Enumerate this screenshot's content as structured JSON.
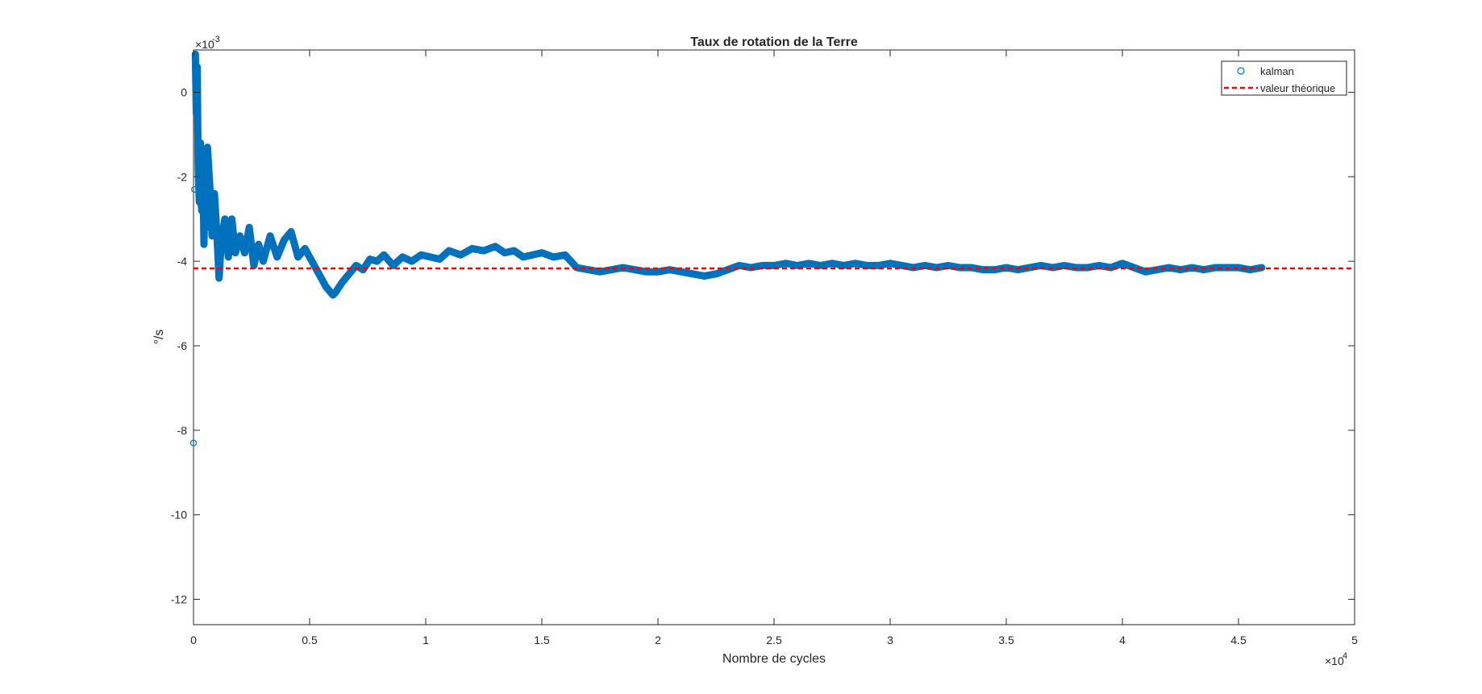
{
  "chart_data": {
    "type": "scatter",
    "title": "Taux de rotation de la Terre",
    "xlabel": "Nombre de cycles",
    "ylabel": "°/s",
    "x_exponent_label": "×10",
    "x_exponent": "4",
    "y_exponent_label": "×10",
    "y_exponent": "-3",
    "xlim": [
      0,
      50000
    ],
    "ylim": [
      -12.6,
      1.0
    ],
    "y_scale_factor": 0.001,
    "x_ticks": [
      0,
      5000,
      10000,
      15000,
      20000,
      25000,
      30000,
      35000,
      40000,
      45000,
      50000
    ],
    "x_tick_labels": [
      "0",
      "0.5",
      "1",
      "1.5",
      "2",
      "2.5",
      "3",
      "3.5",
      "4",
      "4.5",
      "5"
    ],
    "y_ticks": [
      0,
      -2,
      -4,
      -6,
      -8,
      -10,
      -12
    ],
    "y_tick_labels": [
      "0",
      "-2",
      "-4",
      "-6",
      "-8",
      "-10",
      "-12"
    ],
    "grid": false,
    "legend": "top-right",
    "series": [
      {
        "name": "kalman",
        "style": "markers",
        "marker": "circle",
        "color": "#0072BD",
        "x": [
          0,
          40,
          80,
          120,
          160,
          200,
          250,
          300,
          350,
          400,
          450,
          500,
          550,
          600,
          700,
          800,
          900,
          1000,
          1100,
          1200,
          1350,
          1500,
          1650,
          1800,
          2000,
          2200,
          2400,
          2600,
          2800,
          3000,
          3300,
          3600,
          3900,
          4200,
          4500,
          4800,
          5100,
          5400,
          5700,
          6000,
          6100,
          6400,
          6700,
          7000,
          7300,
          7600,
          7900,
          8200,
          8600,
          9000,
          9400,
          9800,
          10200,
          10600,
          11000,
          11500,
          12000,
          12500,
          13000,
          13400,
          13800,
          14200,
          14600,
          15000,
          15500,
          16000,
          16500,
          17000,
          17500,
          18000,
          18500,
          19000,
          19500,
          20000,
          20500,
          21000,
          21500,
          22000,
          22500,
          23000,
          23500,
          24000,
          24500,
          25000,
          25500,
          26000,
          26500,
          27000,
          27500,
          28000,
          28500,
          29000,
          29500,
          30000,
          30500,
          31000,
          31500,
          32000,
          32500,
          33000,
          33500,
          34000,
          34500,
          35000,
          35500,
          36000,
          36500,
          37000,
          37500,
          38000,
          38500,
          39000,
          39500,
          40000,
          40500,
          41000,
          41500,
          42000,
          42500,
          43000,
          43500,
          44000,
          44500,
          45000,
          45500,
          46000
        ],
        "y": [
          -8.3,
          -2.3,
          0.9,
          -0.5,
          0.6,
          -1.8,
          -2.6,
          -1.2,
          -2.8,
          -1.6,
          -3.6,
          -2.2,
          -3.2,
          -1.3,
          -2.2,
          -3.4,
          -2.4,
          -3.3,
          -4.4,
          -3.5,
          -3.0,
          -3.9,
          -3.0,
          -3.8,
          -3.4,
          -3.8,
          -3.2,
          -4.1,
          -3.6,
          -4.0,
          -3.4,
          -3.9,
          -3.5,
          -3.3,
          -3.9,
          -3.7,
          -4.0,
          -4.3,
          -4.6,
          -4.8,
          -4.75,
          -4.5,
          -4.3,
          -4.1,
          -4.2,
          -3.95,
          -4.0,
          -3.85,
          -4.1,
          -3.9,
          -4.0,
          -3.85,
          -3.9,
          -3.95,
          -3.75,
          -3.85,
          -3.7,
          -3.75,
          -3.65,
          -3.8,
          -3.75,
          -3.9,
          -3.85,
          -3.8,
          -3.9,
          -3.85,
          -4.15,
          -4.2,
          -4.25,
          -4.2,
          -4.15,
          -4.2,
          -4.25,
          -4.25,
          -4.2,
          -4.25,
          -4.3,
          -4.35,
          -4.3,
          -4.2,
          -4.1,
          -4.15,
          -4.1,
          -4.1,
          -4.05,
          -4.1,
          -4.05,
          -4.1,
          -4.05,
          -4.1,
          -4.05,
          -4.1,
          -4.1,
          -4.05,
          -4.1,
          -4.15,
          -4.1,
          -4.15,
          -4.1,
          -4.15,
          -4.15,
          -4.2,
          -4.2,
          -4.15,
          -4.2,
          -4.15,
          -4.1,
          -4.15,
          -4.1,
          -4.15,
          -4.15,
          -4.1,
          -4.15,
          -4.05,
          -4.15,
          -4.25,
          -4.2,
          -4.15,
          -4.2,
          -4.15,
          -4.2,
          -4.15,
          -4.15,
          -4.15,
          -4.2,
          -4.15
        ]
      },
      {
        "name": "valeur théorique",
        "style": "dashed-line",
        "color": "#FF0000",
        "x": [
          0,
          50000
        ],
        "y": [
          -4.17,
          -4.17
        ]
      }
    ]
  }
}
